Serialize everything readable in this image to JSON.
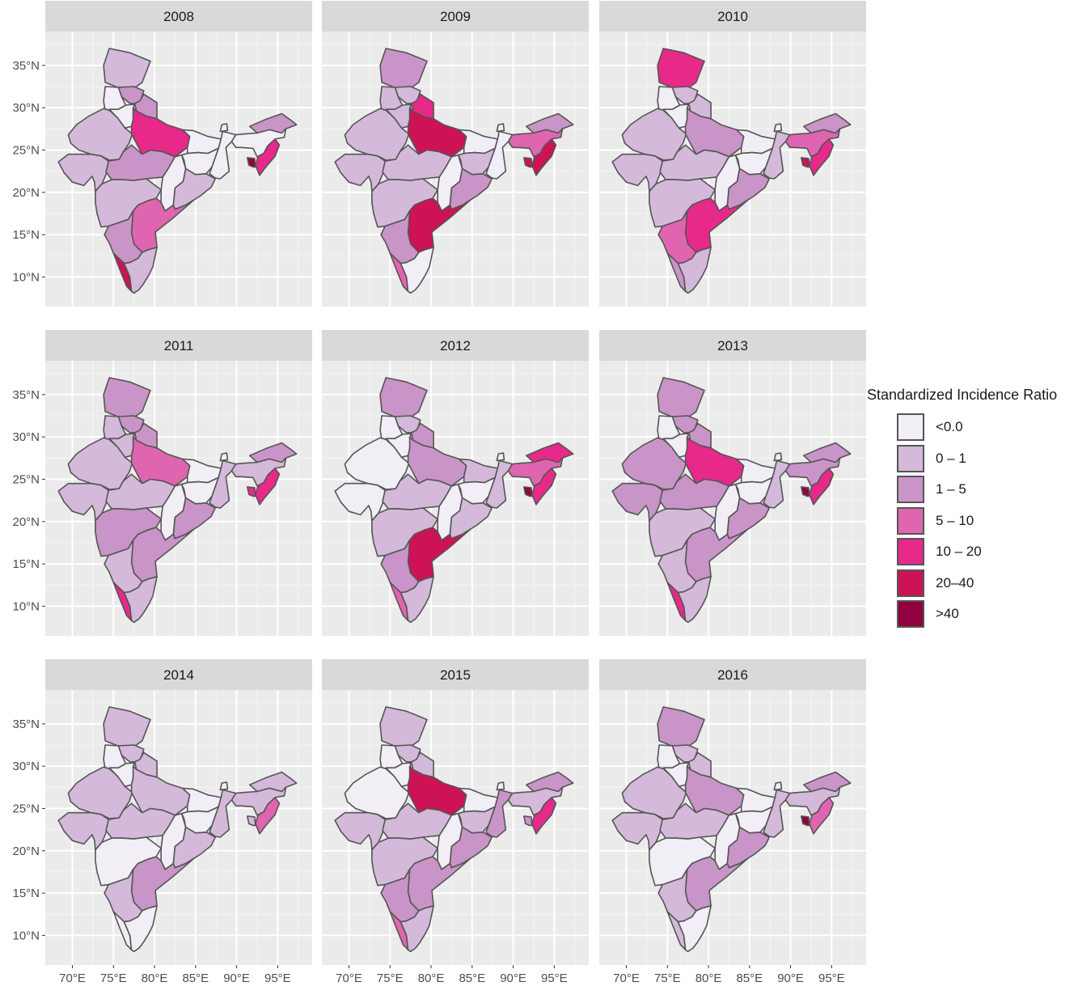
{
  "legend": {
    "title": "Standardized Incidence Ratio",
    "items": [
      {
        "label": "<0.0",
        "color": "#f1eef6"
      },
      {
        "label": "0 – 1",
        "color": "#d4b9da"
      },
      {
        "label": "1 – 5",
        "color": "#c994c7"
      },
      {
        "label": "5 – 10",
        "color": "#df65b0"
      },
      {
        "label": "10 – 20",
        "color": "#e7298a"
      },
      {
        "label": "20–40",
        "color": "#ce1256"
      },
      {
        "label": ">40",
        "color": "#91003f"
      }
    ]
  },
  "axes": {
    "y_ticks": [
      "35°N",
      "30°N",
      "25°N",
      "20°N",
      "15°N",
      "10°N"
    ],
    "y_values": [
      35,
      30,
      25,
      20,
      15,
      10
    ],
    "x_ticks": [
      "70°E",
      "75°E",
      "80°E",
      "85°E",
      "90°E",
      "95°E"
    ],
    "x_values": [
      70,
      75,
      80,
      85,
      90,
      95
    ],
    "lon_range": [
      66.7,
      99.2
    ],
    "lat_range": [
      6.5,
      39.0
    ]
  },
  "years": [
    {
      "label": "2008",
      "classes": {
        "jk": 1,
        "hp": 2,
        "pb": 0,
        "uk": 2,
        "hr": 0,
        "rj": 1,
        "up": 4,
        "br": 0,
        "jh": 0,
        "wb": 0,
        "sk": 0,
        "gj": 1,
        "mp": 2,
        "cg": 0,
        "or": 1,
        "mh": 1,
        "ap": 3,
        "ka": 2,
        "kl": 5,
        "tn": 1,
        "ne": 2,
        "as": 0,
        "mn": 4,
        "tr": 6
      }
    },
    {
      "label": "2009",
      "classes": {
        "jk": 2,
        "hp": 1,
        "pb": 1,
        "uk": 4,
        "hr": 1,
        "rj": 1,
        "up": 5,
        "br": 0,
        "jh": 1,
        "wb": 0,
        "sk": 0,
        "gj": 1,
        "mp": 1,
        "cg": 0,
        "or": 2,
        "mh": 1,
        "ap": 5,
        "ka": 2,
        "kl": 3,
        "tn": 0,
        "ne": 2,
        "as": 3,
        "mn": 5,
        "tr": 5
      }
    },
    {
      "label": "2010",
      "classes": {
        "jk": 4,
        "hp": 1,
        "pb": 0,
        "uk": 1,
        "hr": 0,
        "rj": 1,
        "up": 2,
        "br": 0,
        "jh": 0,
        "wb": 1,
        "sk": 0,
        "gj": 1,
        "mp": 1,
        "cg": 0,
        "or": 2,
        "mh": 1,
        "ap": 4,
        "ka": 3,
        "kl": 2,
        "tn": 1,
        "ne": 2,
        "as": 3,
        "mn": 4,
        "tr": 5
      }
    },
    {
      "label": "2011",
      "classes": {
        "jk": 2,
        "hp": 2,
        "pb": 1,
        "uk": 2,
        "hr": 1,
        "rj": 1,
        "up": 3,
        "br": 0,
        "jh": 0,
        "wb": 1,
        "sk": 0,
        "gj": 1,
        "mp": 1,
        "cg": 0,
        "or": 2,
        "mh": 2,
        "ap": 2,
        "ka": 1,
        "kl": 4,
        "tn": 1,
        "ne": 2,
        "as": 1,
        "mn": 4,
        "tr": 4
      }
    },
    {
      "label": "2012",
      "classes": {
        "jk": 2,
        "hp": 1,
        "pb": 0,
        "uk": 2,
        "hr": 0,
        "rj": 0,
        "up": 2,
        "br": 1,
        "jh": 0,
        "wb": 1,
        "sk": 0,
        "gj": 0,
        "mp": 1,
        "cg": 0,
        "or": 1,
        "mh": 1,
        "ap": 5,
        "ka": 2,
        "kl": 3,
        "tn": 1,
        "ne": 4,
        "as": 3,
        "mn": 4,
        "tr": 6
      }
    },
    {
      "label": "2013",
      "classes": {
        "jk": 2,
        "hp": 2,
        "pb": 0,
        "uk": 2,
        "hr": 0,
        "rj": 2,
        "up": 4,
        "br": 0,
        "jh": 0,
        "wb": 1,
        "sk": 0,
        "gj": 2,
        "mp": 2,
        "cg": 0,
        "or": 2,
        "mh": 1,
        "ap": 2,
        "ka": 1,
        "kl": 4,
        "tn": 1,
        "ne": 2,
        "as": 2,
        "mn": 4,
        "tr": 6
      }
    },
    {
      "label": "2014",
      "classes": {
        "jk": 1,
        "hp": 1,
        "pb": 0,
        "uk": 1,
        "hr": 0,
        "rj": 1,
        "up": 1,
        "br": 0,
        "jh": 0,
        "wb": 1,
        "sk": 0,
        "gj": 1,
        "mp": 1,
        "cg": 0,
        "or": 1,
        "mh": 0,
        "ap": 2,
        "ka": 1,
        "kl": 0,
        "tn": 0,
        "ne": 1,
        "as": 1,
        "mn": 3,
        "tr": 1
      }
    },
    {
      "label": "2015",
      "classes": {
        "jk": 1,
        "hp": 1,
        "pb": 0,
        "uk": 1,
        "hr": 0,
        "rj": 0,
        "up": 5,
        "br": 0,
        "jh": 1,
        "wb": 2,
        "sk": 0,
        "gj": 1,
        "mp": 1,
        "cg": 0,
        "or": 2,
        "mh": 1,
        "ap": 2,
        "ka": 2,
        "kl": 3,
        "tn": 1,
        "ne": 2,
        "as": 1,
        "mn": 4,
        "tr": 2
      }
    },
    {
      "label": "2016",
      "classes": {
        "jk": 2,
        "hp": 1,
        "pb": 0,
        "uk": 1,
        "hr": 0,
        "rj": 1,
        "up": 2,
        "br": 0,
        "jh": 0,
        "wb": 1,
        "sk": 0,
        "gj": 1,
        "mp": 1,
        "cg": 0,
        "or": 2,
        "mh": 0,
        "ap": 2,
        "ka": 1,
        "kl": 1,
        "tn": 0,
        "ne": 2,
        "as": 1,
        "mn": 3,
        "tr": 6
      }
    }
  ]
}
